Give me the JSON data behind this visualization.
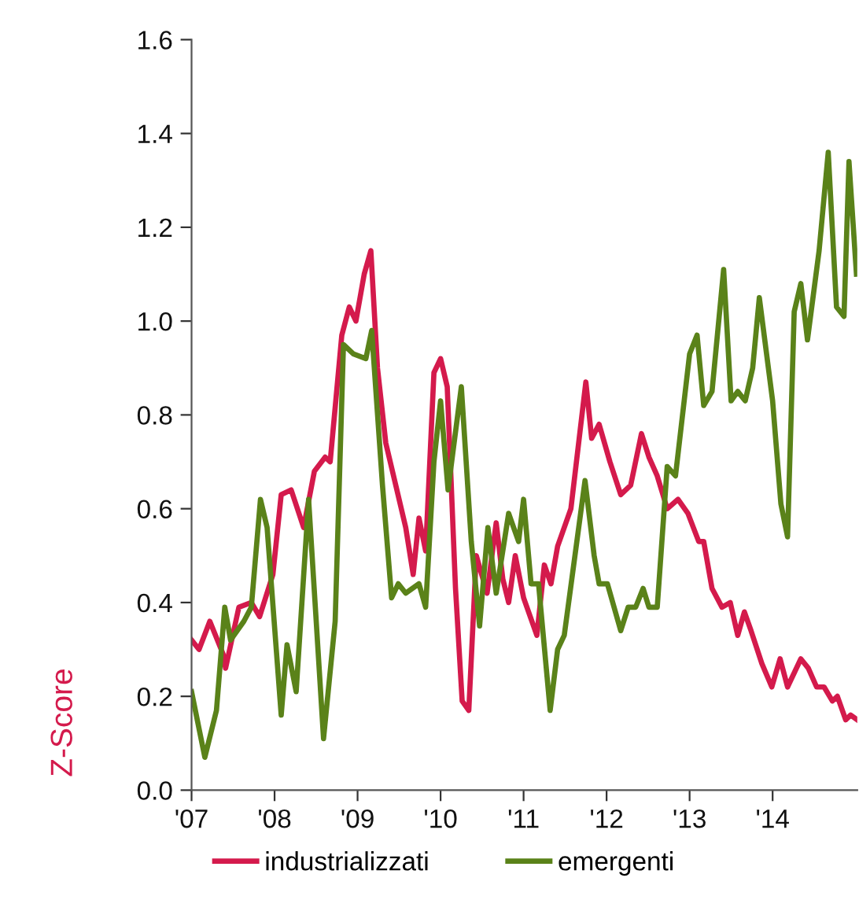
{
  "chart_data": {
    "type": "line",
    "ylabel": "Z-Score",
    "xlim": [
      2007,
      2015.02
    ],
    "ylim": [
      0,
      1.6
    ],
    "xticks": [
      {
        "value": 2007,
        "label": "'07"
      },
      {
        "value": 2008,
        "label": "'08"
      },
      {
        "value": 2009,
        "label": "'09"
      },
      {
        "value": 2010,
        "label": "'10"
      },
      {
        "value": 2011,
        "label": "'11"
      },
      {
        "value": 2012,
        "label": "'12"
      },
      {
        "value": 2013,
        "label": "'13"
      },
      {
        "value": 2014,
        "label": "'14"
      }
    ],
    "yticks": [
      {
        "value": 0,
        "label": "0.0"
      },
      {
        "value": 0.2,
        "label": "0.2"
      },
      {
        "value": 0.4,
        "label": "0.4"
      },
      {
        "value": 0.6,
        "label": "0.6"
      },
      {
        "value": 0.8,
        "label": "0.8"
      },
      {
        "value": 1.0,
        "label": "1.0"
      },
      {
        "value": 1.2,
        "label": "1.2"
      },
      {
        "value": 1.4,
        "label": "1.4"
      },
      {
        "value": 1.6,
        "label": "1.6"
      }
    ],
    "grid": false,
    "legend": "bottom",
    "marker": "none",
    "line_style": "solid",
    "series": [
      {
        "name": "industrializzati",
        "color": "#d41a4c",
        "x": [
          2007.0,
          2007.09,
          2007.22,
          2007.38,
          2007.41,
          2007.57,
          2007.72,
          2007.82,
          2007.98,
          2008.08,
          2008.2,
          2008.35,
          2008.48,
          2008.61,
          2008.67,
          2008.81,
          2008.9,
          2008.98,
          2009.08,
          2009.16,
          2009.24,
          2009.34,
          2009.46,
          2009.58,
          2009.67,
          2009.74,
          2009.82,
          2009.92,
          2010.0,
          2010.08,
          2010.18,
          2010.26,
          2010.34,
          2010.43,
          2010.56,
          2010.67,
          2010.75,
          2010.82,
          2010.9,
          2011.0,
          2011.16,
          2011.25,
          2011.33,
          2011.41,
          2011.57,
          2011.75,
          2011.82,
          2011.91,
          2012.04,
          2012.17,
          2012.29,
          2012.42,
          2012.51,
          2012.61,
          2012.73,
          2012.86,
          2012.98,
          2013.11,
          2013.17,
          2013.27,
          2013.39,
          2013.49,
          2013.58,
          2013.66,
          2013.74,
          2013.87,
          2013.99,
          2014.09,
          2014.18,
          2014.34,
          2014.43,
          2014.53,
          2014.62,
          2014.72,
          2014.78,
          2014.88,
          2014.94,
          2015.02
        ],
        "values": [
          0.32,
          0.3,
          0.36,
          0.29,
          0.26,
          0.39,
          0.4,
          0.37,
          0.46,
          0.63,
          0.64,
          0.56,
          0.68,
          0.71,
          0.7,
          0.97,
          1.03,
          1.0,
          1.1,
          1.15,
          0.9,
          0.74,
          0.65,
          0.56,
          0.46,
          0.58,
          0.51,
          0.89,
          0.92,
          0.86,
          0.43,
          0.19,
          0.17,
          0.5,
          0.42,
          0.57,
          0.45,
          0.4,
          0.5,
          0.41,
          0.33,
          0.48,
          0.44,
          0.52,
          0.6,
          0.87,
          0.75,
          0.78,
          0.7,
          0.63,
          0.65,
          0.76,
          0.71,
          0.67,
          0.6,
          0.62,
          0.59,
          0.53,
          0.53,
          0.43,
          0.39,
          0.4,
          0.33,
          0.38,
          0.34,
          0.27,
          0.22,
          0.28,
          0.22,
          0.28,
          0.26,
          0.22,
          0.22,
          0.19,
          0.2,
          0.15,
          0.16,
          0.15
        ]
      },
      {
        "name": "emergenti",
        "color": "#5a8219",
        "x": [
          2007.0,
          2007.16,
          2007.3,
          2007.4,
          2007.47,
          2007.63,
          2007.72,
          2007.83,
          2007.91,
          2008.08,
          2008.15,
          2008.26,
          2008.41,
          2008.59,
          2008.73,
          2008.83,
          2008.95,
          2009.1,
          2009.17,
          2009.3,
          2009.41,
          2009.49,
          2009.58,
          2009.74,
          2009.82,
          2009.92,
          2010.0,
          2010.09,
          2010.25,
          2010.37,
          2010.47,
          2010.57,
          2010.67,
          2010.82,
          2010.94,
          2011.0,
          2011.09,
          2011.18,
          2011.32,
          2011.41,
          2011.49,
          2011.74,
          2011.85,
          2011.91,
          2012.01,
          2012.17,
          2012.26,
          2012.35,
          2012.44,
          2012.51,
          2012.61,
          2012.73,
          2012.83,
          2013.0,
          2013.09,
          2013.17,
          2013.27,
          2013.41,
          2013.5,
          2013.58,
          2013.67,
          2013.76,
          2013.84,
          2014.0,
          2014.1,
          2014.18,
          2014.26,
          2014.34,
          2014.42,
          2014.56,
          2014.67,
          2014.77,
          2014.86,
          2014.92,
          2015.01
        ],
        "values": [
          0.21,
          0.07,
          0.17,
          0.39,
          0.32,
          0.36,
          0.39,
          0.62,
          0.56,
          0.16,
          0.31,
          0.21,
          0.62,
          0.11,
          0.36,
          0.95,
          0.93,
          0.92,
          0.98,
          0.65,
          0.41,
          0.44,
          0.42,
          0.44,
          0.39,
          0.7,
          0.83,
          0.64,
          0.86,
          0.53,
          0.35,
          0.56,
          0.42,
          0.59,
          0.53,
          0.62,
          0.44,
          0.44,
          0.17,
          0.3,
          0.33,
          0.66,
          0.5,
          0.44,
          0.44,
          0.34,
          0.39,
          0.39,
          0.43,
          0.39,
          0.39,
          0.69,
          0.67,
          0.93,
          0.97,
          0.82,
          0.85,
          1.11,
          0.83,
          0.85,
          0.83,
          0.9,
          1.05,
          0.83,
          0.61,
          0.54,
          1.02,
          1.08,
          0.96,
          1.15,
          1.36,
          1.03,
          1.01,
          1.34,
          1.1
        ]
      }
    ]
  }
}
